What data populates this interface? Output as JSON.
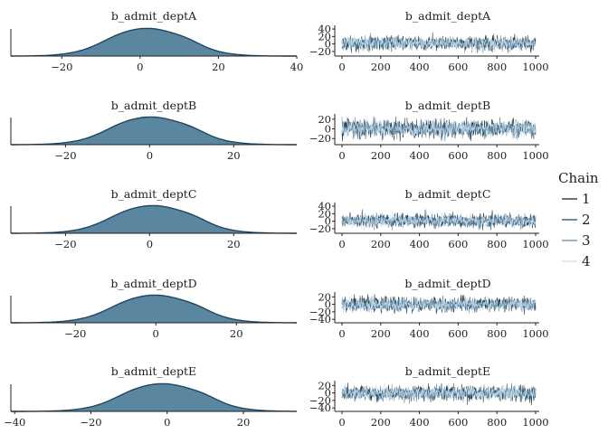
{
  "colors": {
    "density_fill": "#5b869f",
    "density_line": "#1f4763",
    "chains": [
      "#0b1f33",
      "#1f4763",
      "#5f89a5",
      "#c9dfee"
    ],
    "axis": "#222222"
  },
  "legend": {
    "title": "Chain",
    "items": [
      "1",
      "2",
      "3",
      "4"
    ]
  },
  "chart_data": [
    {
      "type": "area",
      "panel": "density",
      "title": "b_admit_deptA",
      "xlim": [
        -33,
        40
      ],
      "x_ticks": [
        -20,
        0,
        20,
        40
      ],
      "mean": 2,
      "sd": 9.5
    },
    {
      "type": "line",
      "panel": "trace",
      "title": "b_admit_deptA",
      "xlim": [
        0,
        1000
      ],
      "x_ticks": [
        0,
        200,
        400,
        600,
        800,
        1000
      ],
      "ylim": [
        -25,
        45
      ],
      "y_ticks": [
        -20,
        0,
        20,
        40
      ],
      "chains": 4,
      "iterations": 1000,
      "mean": 2,
      "sd": 9.5
    },
    {
      "type": "area",
      "panel": "density",
      "title": "b_admit_deptB",
      "xlim": [
        -33,
        35
      ],
      "x_ticks": [
        -20,
        0,
        20
      ],
      "mean": 0.5,
      "sd": 9
    },
    {
      "type": "line",
      "panel": "trace",
      "title": "b_admit_deptB",
      "xlim": [
        0,
        1000
      ],
      "x_ticks": [
        0,
        200,
        400,
        600,
        800,
        1000
      ],
      "ylim": [
        -27,
        27
      ],
      "y_ticks": [
        -20,
        0,
        20
      ],
      "chains": 4,
      "iterations": 1000,
      "mean": 0.5,
      "sd": 9
    },
    {
      "type": "area",
      "panel": "density",
      "title": "b_admit_deptC",
      "xlim": [
        -33,
        35
      ],
      "x_ticks": [
        -20,
        0,
        20
      ],
      "mean": 1,
      "sd": 9
    },
    {
      "type": "line",
      "panel": "trace",
      "title": "b_admit_deptC",
      "xlim": [
        0,
        1000
      ],
      "x_ticks": [
        0,
        200,
        400,
        600,
        800,
        1000
      ],
      "ylim": [
        -25,
        45
      ],
      "y_ticks": [
        -20,
        0,
        20,
        40
      ],
      "chains": 4,
      "iterations": 1000,
      "mean": 1,
      "sd": 9
    },
    {
      "type": "area",
      "panel": "density",
      "title": "b_admit_deptD",
      "xlim": [
        -36,
        35
      ],
      "x_ticks": [
        -20,
        0,
        20
      ],
      "mean": 0,
      "sd": 9.5
    },
    {
      "type": "line",
      "panel": "trace",
      "title": "b_admit_deptD",
      "xlim": [
        0,
        1000
      ],
      "x_ticks": [
        0,
        200,
        400,
        600,
        800,
        1000
      ],
      "ylim": [
        -42,
        28
      ],
      "y_ticks": [
        -40,
        -20,
        0,
        20
      ],
      "chains": 4,
      "iterations": 1000,
      "mean": 0,
      "sd": 9.5
    },
    {
      "type": "area",
      "panel": "density",
      "title": "b_admit_deptE",
      "xlim": [
        -41,
        34
      ],
      "x_ticks": [
        -40,
        -20,
        0,
        20
      ],
      "mean": -1,
      "sd": 10
    },
    {
      "type": "line",
      "panel": "trace",
      "title": "b_admit_deptE",
      "xlim": [
        0,
        1000
      ],
      "x_ticks": [
        0,
        200,
        400,
        600,
        800,
        1000
      ],
      "ylim": [
        -42,
        28
      ],
      "y_ticks": [
        -40,
        -20,
        0,
        20
      ],
      "chains": 4,
      "iterations": 1000,
      "mean": -1,
      "sd": 10
    }
  ]
}
